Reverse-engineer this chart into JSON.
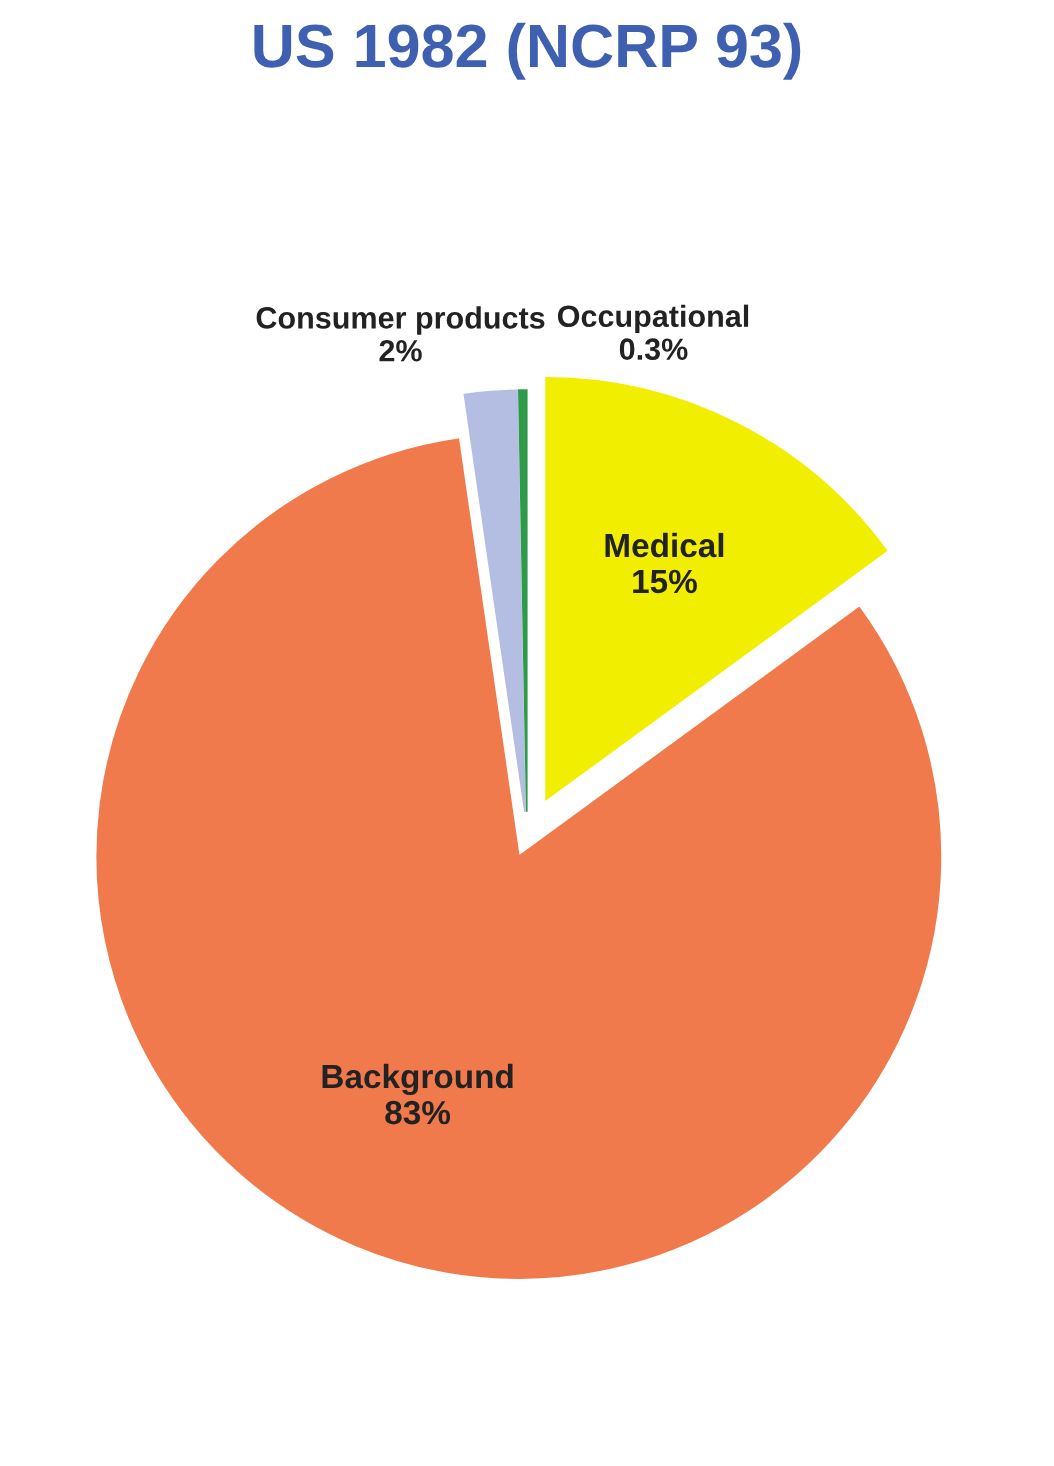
{
  "chart_data": {
    "type": "pie",
    "title": "US 1982 (NCRP 93)",
    "categories": [
      "Medical",
      "Background",
      "Consumer products",
      "Occupational"
    ],
    "values": [
      15,
      83,
      2,
      0.3
    ],
    "value_labels": [
      "15%",
      "83%",
      "2%",
      "0.3%"
    ],
    "colors": [
      "#f2ee00",
      "#f07a4c",
      "#b4bde2",
      "#2e9a4a"
    ],
    "data_labels": true,
    "legend": false
  }
}
